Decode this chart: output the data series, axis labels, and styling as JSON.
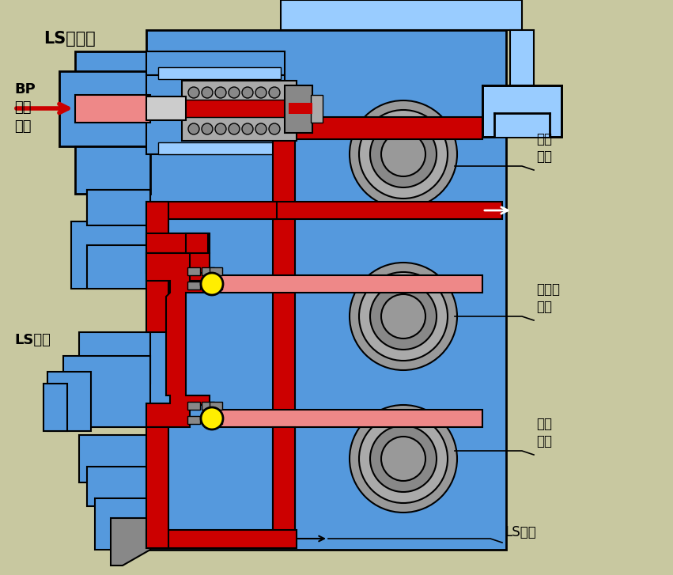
{
  "bg_color": "#c8c8a0",
  "main_blue": "#5599dd",
  "light_blue": "#99ccff",
  "dark_blue": "#3366bb",
  "red": "#cc0000",
  "light_red": "#ee8888",
  "gray": "#aaaaaa",
  "mid_gray": "#888888",
  "dark_gray": "#777777",
  "yellow": "#ffee00",
  "black": "#000000",
  "white": "#ffffff",
  "labels": {
    "ls_select": "LS选择阀",
    "bp": "BP\n先导\n压力",
    "ls_shuttle": "LS梭阀",
    "rotate": "回转\n滑阀",
    "left_travel": "左行走\n滑阀",
    "boom": "斗杆\n滑阀",
    "ls_circuit": "LS回路"
  }
}
